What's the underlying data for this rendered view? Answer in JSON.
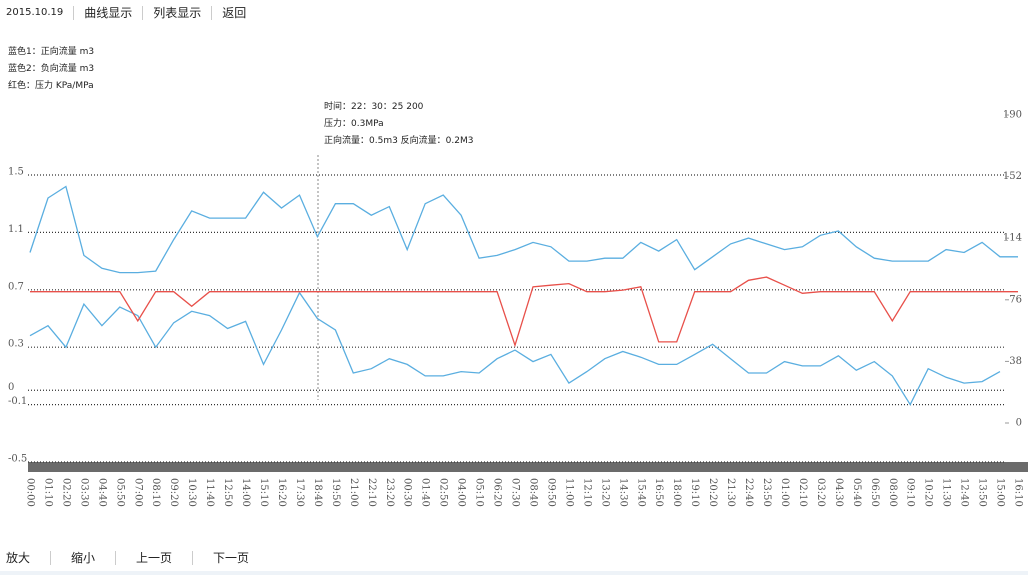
{
  "header": {
    "date": "2015.10.19",
    "links": [
      "曲线显示",
      "列表显示",
      "返回"
    ]
  },
  "legend": [
    "蓝色1：正向流量 m3",
    "蓝色2：负向流量 m3",
    "红色：压力 KPa/MPa"
  ],
  "tooltip": [
    "时间：22：30：25 200",
    "压力：0.3MPa",
    "正向流量：0.5m3  反向流量：0.2M3"
  ],
  "footer": [
    "放大",
    "缩小",
    "上一页",
    "下一页"
  ],
  "chart_data": {
    "type": "line",
    "categories": [
      "00:00",
      "01:10",
      "02:20",
      "03:30",
      "04:40",
      "05:50",
      "07:00",
      "08:10",
      "09:20",
      "10:30",
      "11:40",
      "12:50",
      "14:00",
      "15:10",
      "16:20",
      "17:30",
      "18:40",
      "19:50",
      "21:00",
      "22:10",
      "23:20",
      "00:30",
      "01:40",
      "02:50",
      "04:00",
      "05:10",
      "06:20",
      "07:30",
      "08:40",
      "09:50",
      "11:00",
      "12:10",
      "13:20",
      "14:30",
      "15:40",
      "16:50",
      "18:00",
      "19:10",
      "20:20",
      "21:30",
      "22:40",
      "23:50",
      "01:00",
      "02:10",
      "03:20",
      "04:30",
      "05:40",
      "06:50",
      "08:00",
      "09:10",
      "10:20",
      "11:30",
      "12:40",
      "13:50",
      "15:00",
      "16:10"
    ],
    "series": [
      {
        "name": "蓝色1",
        "color": "#5aaee0",
        "values": [
          0.96,
          1.34,
          1.42,
          0.94,
          0.85,
          0.82,
          0.82,
          0.83,
          1.05,
          1.25,
          1.2,
          1.2,
          1.2,
          1.38,
          1.27,
          1.36,
          1.07,
          1.3,
          1.3,
          1.22,
          1.28,
          0.98,
          1.3,
          1.36,
          1.22,
          0.92,
          0.94,
          0.98,
          1.03,
          1.0,
          0.9,
          0.9,
          0.92,
          0.92,
          1.03,
          0.97,
          1.05,
          0.84,
          0.93,
          1.02,
          1.06,
          1.02,
          0.98,
          1.0,
          1.08,
          1.11,
          1.0,
          0.92,
          0.9,
          0.9,
          0.9,
          0.98,
          0.96,
          1.03,
          0.93,
          0.93
        ]
      },
      {
        "name": "蓝色2",
        "color": "#5aaee0",
        "values": [
          0.38,
          0.45,
          0.3,
          0.6,
          0.45,
          0.58,
          0.52,
          0.3,
          0.47,
          0.55,
          0.52,
          0.43,
          0.48,
          0.18,
          0.42,
          0.68,
          0.5,
          0.42,
          0.12,
          0.15,
          0.22,
          0.18,
          0.1,
          0.1,
          0.13,
          0.12,
          0.22,
          0.28,
          0.2,
          0.25,
          0.05,
          0.13,
          0.22,
          0.27,
          0.23,
          0.18,
          0.18,
          0.25,
          0.32,
          0.22,
          0.12,
          0.12,
          0.2,
          0.17,
          0.17,
          0.24,
          0.14,
          0.2,
          0.1,
          -0.1,
          0.15,
          0.09,
          0.05,
          0.06,
          0.13,
          null
        ]
      },
      {
        "name": "红色",
        "color": "#e8504a",
        "axis": "y2",
        "values": [
          81,
          81,
          81,
          81,
          81,
          81,
          63,
          81,
          81,
          72,
          81,
          81,
          81,
          81,
          81,
          81,
          81,
          81,
          81,
          81,
          81,
          81,
          81,
          81,
          81,
          81,
          81,
          48,
          84,
          85,
          86,
          81,
          81,
          82,
          84,
          50,
          50,
          81,
          81,
          81,
          88,
          90,
          85,
          80,
          81,
          81,
          81,
          81,
          63,
          81,
          81,
          81,
          81,
          81,
          81,
          81
        ]
      }
    ],
    "ylim": [
      -0.5,
      1.5
    ],
    "yticks": [
      -0.5,
      -0.1,
      0,
      0.3,
      0.7,
      1.1,
      1.5
    ],
    "y2lim": [
      0,
      190
    ],
    "y2ticks": [
      0,
      38,
      76,
      114,
      152,
      190
    ],
    "grid": true
  }
}
